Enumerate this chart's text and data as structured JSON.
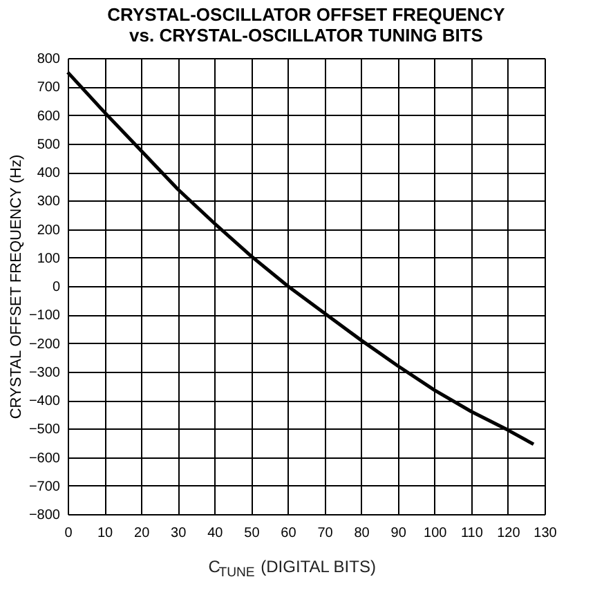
{
  "chart_data": {
    "type": "line",
    "title": [
      "CRYSTAL-OSCILLATOR OFFSET FREQUENCY",
      "vs. CRYSTAL-OSCILLATOR TUNING BITS"
    ],
    "xlabel": "C$_{TUNE}$ (DIGITAL BITS)",
    "ylabel": "CRYSTAL OFFSET FREQUENCY (Hz)",
    "x": [
      0,
      10,
      20,
      30,
      40,
      50,
      60,
      70,
      80,
      90,
      100,
      110,
      120,
      127
    ],
    "series": [
      {
        "color": "#000000",
        "values": [
          750,
          610,
          475,
          340,
          220,
          105,
          0,
          -95,
          -190,
          -280,
          -365,
          -440,
          -505,
          -555
        ]
      }
    ],
    "xlim": [
      0,
      130
    ],
    "xticks": [
      0,
      10,
      20,
      30,
      40,
      50,
      60,
      70,
      80,
      90,
      100,
      110,
      120,
      130
    ],
    "ylim": [
      -800,
      800
    ],
    "yticks": [
      -800,
      -700,
      -600,
      -500,
      -400,
      -300,
      -200,
      -100,
      0,
      100,
      200,
      300,
      400,
      500,
      600,
      700,
      800
    ],
    "grid": true,
    "marker": "none",
    "line_style": "solid"
  }
}
